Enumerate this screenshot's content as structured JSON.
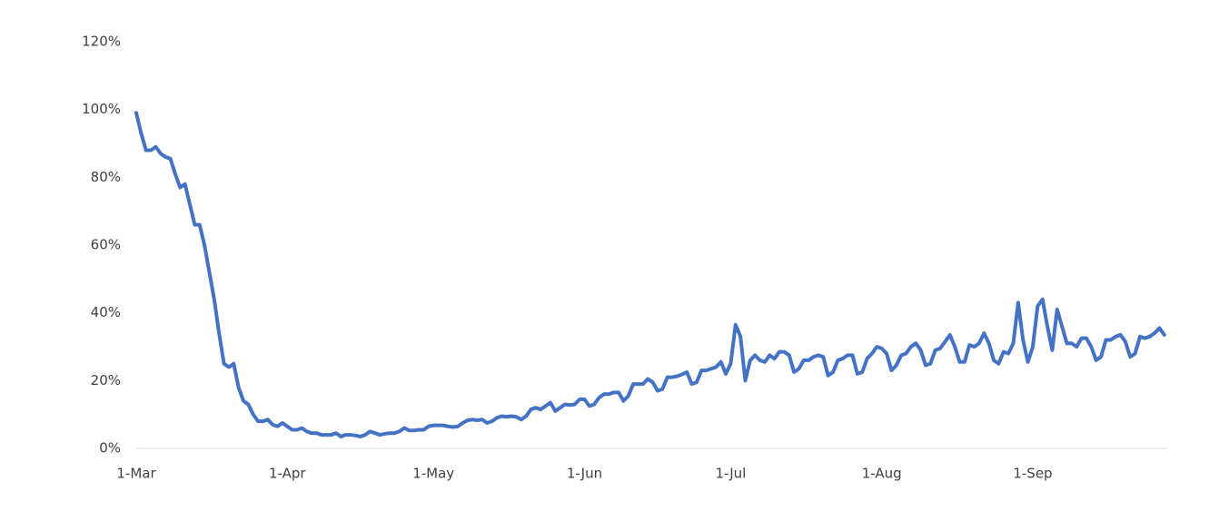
{
  "chart_data": {
    "type": "line",
    "color": "#4472c4",
    "categories": [
      "1-Mar",
      null,
      null,
      null,
      null,
      null,
      null,
      null,
      null,
      null,
      null,
      null,
      null,
      null,
      null,
      null,
      null,
      null,
      null,
      null,
      null,
      null,
      null,
      null,
      null,
      null,
      null,
      null,
      null,
      null,
      null,
      "1-Apr",
      null,
      null,
      null,
      null,
      null,
      null,
      null,
      null,
      null,
      null,
      null,
      null,
      null,
      null,
      null,
      null,
      null,
      null,
      null,
      null,
      null,
      null,
      null,
      null,
      null,
      null,
      null,
      null,
      null,
      "1-May",
      null,
      null,
      null,
      null,
      null,
      null,
      null,
      null,
      null,
      null,
      null,
      null,
      null,
      null,
      null,
      null,
      null,
      null,
      null,
      null,
      null,
      null,
      null,
      null,
      null,
      null,
      null,
      null,
      null,
      null,
      "1-Jun",
      null,
      null,
      null,
      null,
      null,
      null,
      null,
      null,
      null,
      null,
      null,
      null,
      null,
      null,
      null,
      null,
      null,
      null,
      null,
      null,
      null,
      null,
      null,
      null,
      null,
      null,
      null,
      null,
      null,
      "1-Jul",
      null,
      null,
      null,
      null,
      null,
      null,
      null,
      null,
      null,
      null,
      null,
      null,
      null,
      null,
      null,
      null,
      null,
      null,
      null,
      null,
      null,
      null,
      null,
      null,
      null,
      null,
      null,
      null,
      null,
      null,
      "1-Aug",
      null,
      null,
      null,
      null,
      null,
      null,
      null,
      null,
      null,
      null,
      null,
      null,
      null,
      null,
      null,
      null,
      null,
      null,
      null,
      null,
      null,
      null,
      null,
      null,
      null,
      null,
      null,
      null,
      null,
      null,
      "1-Sep",
      null,
      null,
      null,
      null,
      null,
      null,
      null,
      null,
      null,
      null,
      null,
      null,
      null,
      null,
      null,
      null,
      null,
      null,
      null,
      null,
      null,
      null,
      null,
      null,
      null,
      null,
      null
    ],
    "values": [
      99,
      93,
      88,
      88,
      89,
      87,
      86,
      85.5,
      81,
      77,
      78,
      72,
      66,
      66,
      60,
      52,
      44,
      34,
      25,
      24,
      25,
      18,
      14,
      13,
      10,
      8,
      8,
      8.5,
      7,
      6.5,
      7.5,
      6.5,
      5.5,
      5.5,
      6,
      5,
      4.5,
      4.5,
      4,
      4,
      4,
      4.5,
      3.5,
      4,
      4,
      3.8,
      3.5,
      4,
      5,
      4.5,
      4,
      4.3,
      4.5,
      4.5,
      5,
      6,
      5.3,
      5.3,
      5.5,
      5.5,
      6.5,
      6.8,
      6.8,
      6.8,
      6.5,
      6.3,
      6.5,
      7.5,
      8.3,
      8.5,
      8.3,
      8.5,
      7.5,
      8,
      9,
      9.5,
      9.3,
      9.5,
      9.3,
      8.5,
      9.5,
      11.5,
      12,
      11.5,
      12.5,
      13.5,
      11,
      12,
      13,
      12.8,
      13,
      14.5,
      14.5,
      12.5,
      13,
      15,
      16,
      16,
      16.5,
      16.5,
      14,
      15.5,
      19,
      19,
      19,
      20.5,
      19.5,
      17,
      17.5,
      21,
      21,
      21.3,
      21.8,
      22.5,
      19,
      19.5,
      23,
      23,
      23.5,
      24,
      25.5,
      22,
      25,
      36.5,
      33,
      20,
      26,
      27.5,
      26,
      25.5,
      27.5,
      26.5,
      28.5,
      28.5,
      27.5,
      22.5,
      23.5,
      26,
      26,
      27,
      27.5,
      27,
      21.5,
      22.5,
      26,
      26.5,
      27.5,
      27.5,
      22,
      22.5,
      26.5,
      28,
      30,
      29.5,
      28,
      23,
      24.5,
      27.5,
      28,
      30,
      31,
      29,
      24.5,
      25,
      29,
      29.5,
      31.5,
      33.5,
      30,
      25.5,
      25.5,
      30.5,
      30,
      31,
      34,
      31,
      26,
      25,
      28.5,
      28,
      31,
      43,
      32,
      25.5,
      30,
      42,
      44,
      36,
      29,
      41,
      36,
      31,
      31,
      30,
      32.5,
      32.5,
      30,
      26,
      27,
      32,
      32,
      33,
      33.5,
      31.5,
      27,
      28,
      33,
      32.5,
      33,
      34,
      35.5,
      33.5
    ],
    "ylim": [
      0,
      120
    ],
    "yticks": [
      {
        "value": 0,
        "label": "0%"
      },
      {
        "value": 20,
        "label": "20%"
      },
      {
        "value": 40,
        "label": "40%"
      },
      {
        "value": 60,
        "label": "60%"
      },
      {
        "value": 80,
        "label": "80%"
      },
      {
        "value": 100,
        "label": "100%"
      },
      {
        "value": 120,
        "label": "120%"
      }
    ],
    "grid": false
  }
}
